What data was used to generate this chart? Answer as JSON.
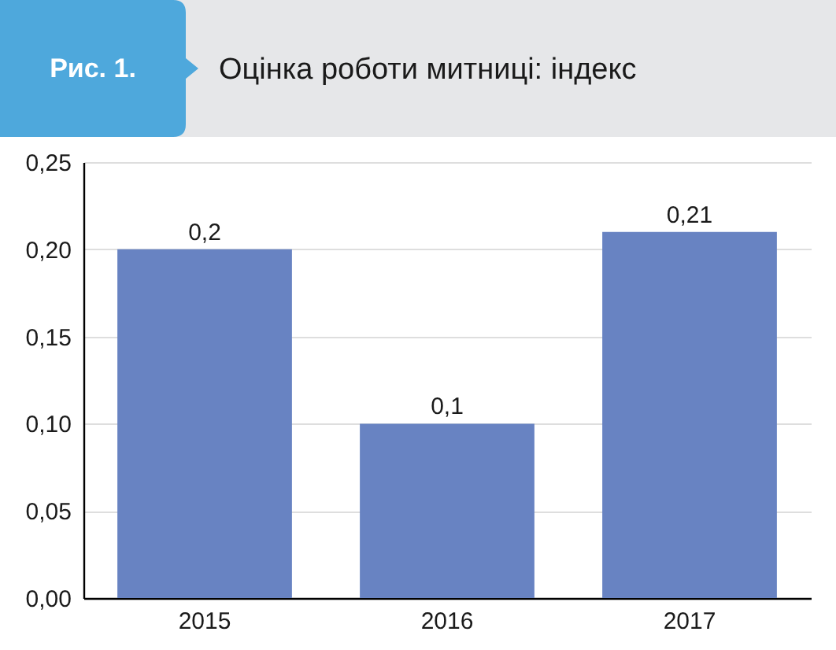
{
  "chart_data": {
    "type": "bar",
    "title": "Рис. 1.",
    "subtitle": "Оцінка роботи митниці: індекс",
    "categories": [
      "2015",
      "2016",
      "2017"
    ],
    "values": [
      0.2,
      0.1,
      0.21
    ],
    "value_labels": [
      "0,2",
      "0,1",
      "0,21"
    ],
    "color": "#6883c2",
    "ylim": [
      0,
      0.25
    ],
    "yticks": [
      {
        "value": 0,
        "label": "0,00"
      },
      {
        "value": 0.05,
        "label": "0,05"
      },
      {
        "value": 0.1,
        "label": "0,10"
      },
      {
        "value": 0.15,
        "label": "0,15"
      },
      {
        "value": 0.2,
        "label": "0,20"
      },
      {
        "value": 0.25,
        "label": "0,25"
      }
    ],
    "grid": "y"
  }
}
